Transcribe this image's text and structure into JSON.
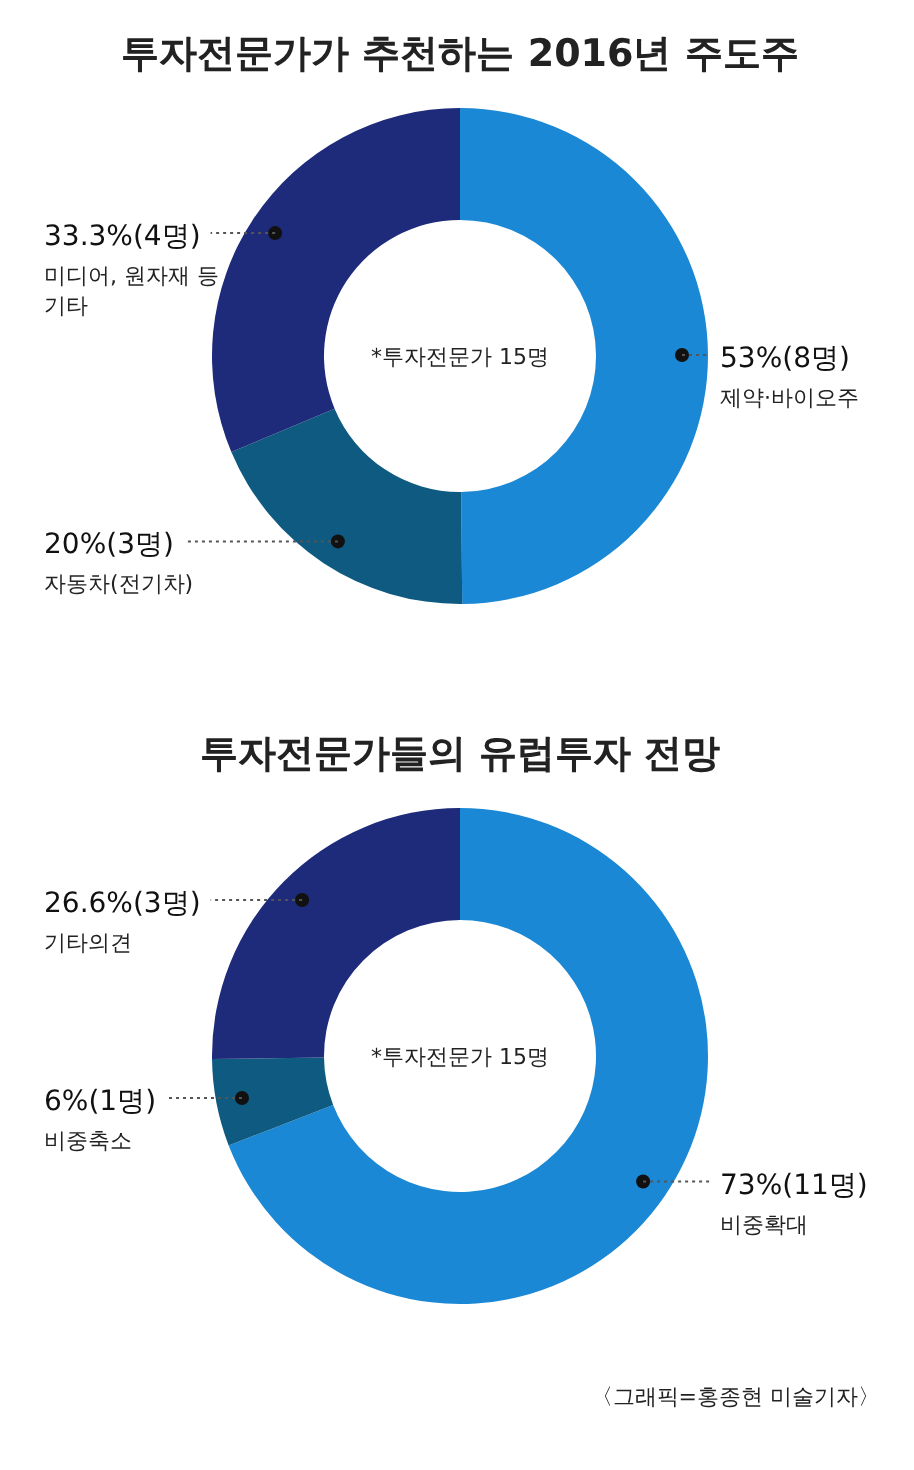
{
  "chart_data": [
    {
      "type": "donut",
      "title": "투자전문가가 추천하는 2016년 주도주",
      "categories": [
        "제약·바이오주",
        "자동차(전기차)",
        "미디어, 원자재 등 기타"
      ],
      "values": [
        53,
        20,
        33.3
      ],
      "value_labels": [
        "53%(8명)",
        "20%(3명)",
        "33.3%(4명)"
      ],
      "colors": [
        "#1a88d4",
        "#0f5a80",
        "#1e2a7a"
      ],
      "annotations": [
        "*투자전문가 15명"
      ]
    },
    {
      "type": "donut",
      "title": "투자전문가들의 유럽투자 전망",
      "categories": [
        "비중확대",
        "비중축소",
        "기타의견"
      ],
      "values": [
        73,
        6,
        26.6
      ],
      "value_labels": [
        "73%(11명)",
        "6%(1명)",
        "26.6%(3명)"
      ],
      "colors": [
        "#1a88d4",
        "#0f5a80",
        "#1e2a7a"
      ],
      "annotations": [
        "*투자전문가 15명",
        "〈그래픽=홍종현 미술기자〉"
      ]
    }
  ]
}
